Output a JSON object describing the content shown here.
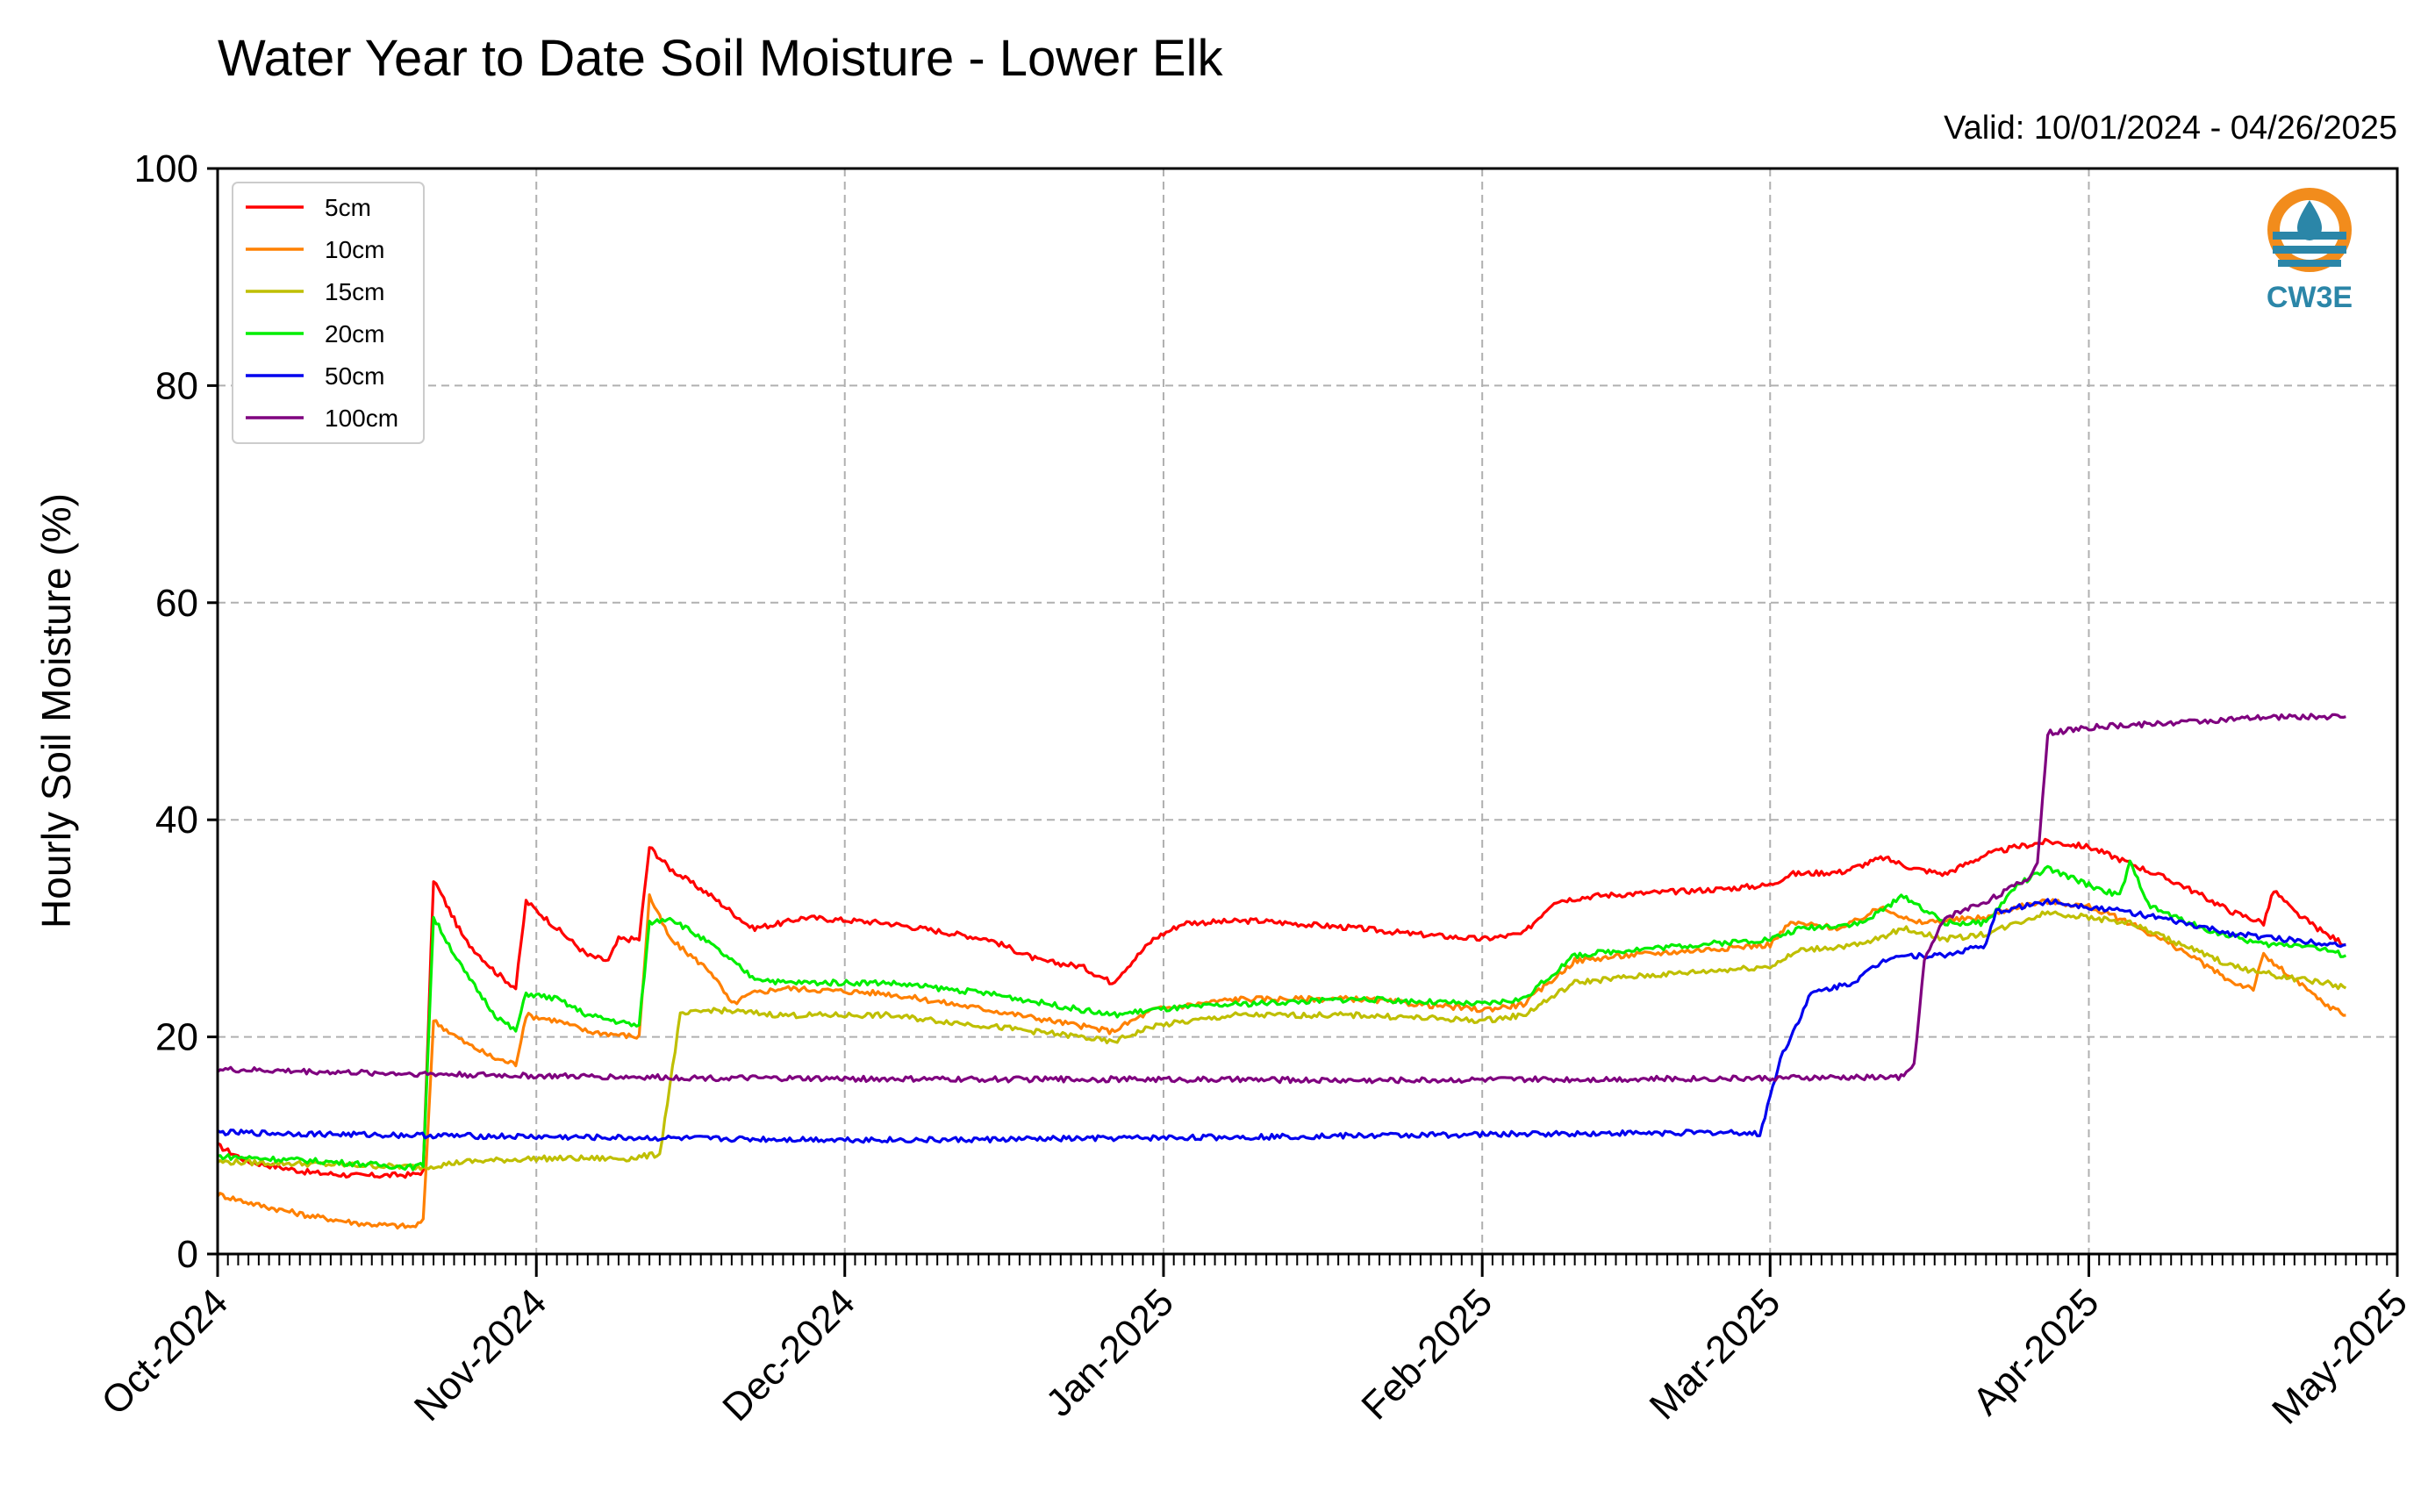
{
  "chart_data": {
    "type": "line",
    "title": "Water Year to Date Soil Moisture - Lower Elk",
    "valid": "Valid: 10/01/2024 - 04/26/2025",
    "ylabel": "Hourly Soil Moisture (%)",
    "xlabel": "",
    "ylim": [
      0,
      100
    ],
    "xlim": [
      "2024-10-01",
      "2025-05-01"
    ],
    "yticks": [
      "0",
      "20",
      "40",
      "60",
      "80",
      "100"
    ],
    "xticks": [
      {
        "date": "2024-10-01",
        "label": "Oct-2024"
      },
      {
        "date": "2024-11-01",
        "label": "Nov-2024"
      },
      {
        "date": "2024-12-01",
        "label": "Dec-2024"
      },
      {
        "date": "2025-01-01",
        "label": "Jan-2025"
      },
      {
        "date": "2025-02-01",
        "label": "Feb-2025"
      },
      {
        "date": "2025-03-01",
        "label": "Mar-2025"
      },
      {
        "date": "2025-04-01",
        "label": "Apr-2025"
      },
      {
        "date": "2025-05-01",
        "label": "May-2025"
      }
    ],
    "grid": true,
    "legend_position": "top-left",
    "series": [
      {
        "name": "5cm",
        "color": "#ff0000",
        "points": [
          [
            "2024-10-01",
            10.0
          ],
          [
            "2024-10-04",
            8.5
          ],
          [
            "2024-10-10",
            7.5
          ],
          [
            "2024-10-15",
            7.2
          ],
          [
            "2024-10-20",
            7.3
          ],
          [
            "2024-10-21",
            7.6
          ],
          [
            "2024-10-22",
            34.5
          ],
          [
            "2024-10-25",
            29.0
          ],
          [
            "2024-10-28",
            26.0
          ],
          [
            "2024-10-30",
            24.5
          ],
          [
            "2024-10-31",
            32.5
          ],
          [
            "2024-11-03",
            30.0
          ],
          [
            "2024-11-06",
            27.5
          ],
          [
            "2024-11-08",
            27.0
          ],
          [
            "2024-11-09",
            29.0
          ],
          [
            "2024-11-11",
            29.0
          ],
          [
            "2024-11-12",
            37.5
          ],
          [
            "2024-11-14",
            35.5
          ],
          [
            "2024-11-18",
            33.0
          ],
          [
            "2024-11-22",
            30.0
          ],
          [
            "2024-11-25",
            30.5
          ],
          [
            "2024-11-27",
            31.0
          ],
          [
            "2024-12-05",
            30.5
          ],
          [
            "2024-12-15",
            29.0
          ],
          [
            "2024-12-20",
            27.0
          ],
          [
            "2024-12-24",
            26.5
          ],
          [
            "2024-12-27",
            25.0
          ],
          [
            "2024-12-31",
            29.0
          ],
          [
            "2025-01-03",
            30.5
          ],
          [
            "2025-01-10",
            30.7
          ],
          [
            "2025-01-20",
            30.0
          ],
          [
            "2025-01-25",
            29.5
          ],
          [
            "2025-02-01",
            29.0
          ],
          [
            "2025-02-05",
            29.5
          ],
          [
            "2025-02-08",
            32.5
          ],
          [
            "2025-02-12",
            33.0
          ],
          [
            "2025-02-18",
            33.3
          ],
          [
            "2025-02-24",
            33.6
          ],
          [
            "2025-03-01",
            34.0
          ],
          [
            "2025-03-03",
            35.0
          ],
          [
            "2025-03-08",
            35.2
          ],
          [
            "2025-03-12",
            36.5
          ],
          [
            "2025-03-15",
            35.5
          ],
          [
            "2025-03-18",
            35.0
          ],
          [
            "2025-03-22",
            36.8
          ],
          [
            "2025-03-25",
            37.5
          ],
          [
            "2025-03-28",
            38.0
          ],
          [
            "2025-04-01",
            37.5
          ],
          [
            "2025-04-05",
            36.0
          ],
          [
            "2025-04-10",
            34.0
          ],
          [
            "2025-04-15",
            31.5
          ],
          [
            "2025-04-18",
            30.5
          ],
          [
            "2025-04-19",
            33.5
          ],
          [
            "2025-04-21",
            31.5
          ],
          [
            "2025-04-24",
            29.5
          ],
          [
            "2025-04-26",
            28.5
          ]
        ]
      },
      {
        "name": "10cm",
        "color": "#ff8000",
        "points": [
          [
            "2024-10-01",
            5.5
          ],
          [
            "2024-10-05",
            4.5
          ],
          [
            "2024-10-10",
            3.5
          ],
          [
            "2024-10-15",
            2.8
          ],
          [
            "2024-10-20",
            2.5
          ],
          [
            "2024-10-21",
            3.0
          ],
          [
            "2024-10-22",
            21.5
          ],
          [
            "2024-10-25",
            19.5
          ],
          [
            "2024-10-28",
            18.0
          ],
          [
            "2024-10-30",
            17.5
          ],
          [
            "2024-10-31",
            22.0
          ],
          [
            "2024-11-03",
            21.5
          ],
          [
            "2024-11-06",
            20.5
          ],
          [
            "2024-11-11",
            20.0
          ],
          [
            "2024-11-12",
            33.0
          ],
          [
            "2024-11-14",
            29.0
          ],
          [
            "2024-11-18",
            26.0
          ],
          [
            "2024-11-20",
            23.0
          ],
          [
            "2024-11-22",
            24.0
          ],
          [
            "2024-11-25",
            24.5
          ],
          [
            "2024-12-05",
            24.0
          ],
          [
            "2024-12-15",
            22.5
          ],
          [
            "2024-12-24",
            21.0
          ],
          [
            "2024-12-27",
            20.5
          ],
          [
            "2024-12-31",
            22.5
          ],
          [
            "2025-01-08",
            23.5
          ],
          [
            "2025-01-20",
            23.5
          ],
          [
            "2025-02-01",
            22.5
          ],
          [
            "2025-02-05",
            23.0
          ],
          [
            "2025-02-10",
            27.0
          ],
          [
            "2025-02-15",
            27.5
          ],
          [
            "2025-02-22",
            28.0
          ],
          [
            "2025-03-01",
            28.5
          ],
          [
            "2025-03-03",
            30.5
          ],
          [
            "2025-03-08",
            30.0
          ],
          [
            "2025-03-12",
            32.0
          ],
          [
            "2025-03-15",
            30.5
          ],
          [
            "2025-03-22",
            31.0
          ],
          [
            "2025-03-25",
            32.0
          ],
          [
            "2025-03-28",
            32.5
          ],
          [
            "2025-04-01",
            32.0
          ],
          [
            "2025-04-05",
            30.5
          ],
          [
            "2025-04-10",
            28.0
          ],
          [
            "2025-04-15",
            25.0
          ],
          [
            "2025-04-17",
            24.5
          ],
          [
            "2025-04-18",
            27.5
          ],
          [
            "2025-04-20",
            26.0
          ],
          [
            "2025-04-24",
            23.0
          ],
          [
            "2025-04-26",
            22.0
          ]
        ]
      },
      {
        "name": "15cm",
        "color": "#bfbf00",
        "points": [
          [
            "2024-10-01",
            8.5
          ],
          [
            "2024-10-10",
            8.3
          ],
          [
            "2024-10-21",
            8.0
          ],
          [
            "2024-10-25",
            8.5
          ],
          [
            "2024-11-01",
            8.8
          ],
          [
            "2024-11-10",
            8.8
          ],
          [
            "2024-11-13",
            9.2
          ],
          [
            "2024-11-15",
            22.0
          ],
          [
            "2024-11-18",
            22.5
          ],
          [
            "2024-11-25",
            22.0
          ],
          [
            "2024-12-05",
            22.0
          ],
          [
            "2024-12-15",
            21.0
          ],
          [
            "2024-12-24",
            20.0
          ],
          [
            "2024-12-27",
            19.5
          ],
          [
            "2024-12-31",
            21.0
          ],
          [
            "2025-01-08",
            22.0
          ],
          [
            "2025-01-20",
            22.0
          ],
          [
            "2025-02-01",
            21.5
          ],
          [
            "2025-02-05",
            22.0
          ],
          [
            "2025-02-10",
            25.0
          ],
          [
            "2025-02-15",
            25.5
          ],
          [
            "2025-02-22",
            26.0
          ],
          [
            "2025-03-01",
            26.5
          ],
          [
            "2025-03-04",
            28.0
          ],
          [
            "2025-03-10",
            28.5
          ],
          [
            "2025-03-14",
            30.0
          ],
          [
            "2025-03-18",
            29.0
          ],
          [
            "2025-03-22",
            29.5
          ],
          [
            "2025-03-28",
            31.5
          ],
          [
            "2025-04-01",
            31.0
          ],
          [
            "2025-04-05",
            30.5
          ],
          [
            "2025-04-10",
            28.5
          ],
          [
            "2025-04-15",
            26.5
          ],
          [
            "2025-04-20",
            25.5
          ],
          [
            "2025-04-24",
            25.0
          ],
          [
            "2025-04-26",
            24.5
          ]
        ]
      },
      {
        "name": "20cm",
        "color": "#00ee00",
        "points": [
          [
            "2024-10-01",
            9.0
          ],
          [
            "2024-10-10",
            8.6
          ],
          [
            "2024-10-20",
            8.0
          ],
          [
            "2024-10-21",
            8.2
          ],
          [
            "2024-10-22",
            31.0
          ],
          [
            "2024-10-25",
            26.0
          ],
          [
            "2024-10-28",
            22.0
          ],
          [
            "2024-10-30",
            20.5
          ],
          [
            "2024-10-31",
            24.0
          ],
          [
            "2024-11-03",
            23.5
          ],
          [
            "2024-11-06",
            22.0
          ],
          [
            "2024-11-11",
            21.0
          ],
          [
            "2024-11-12",
            30.5
          ],
          [
            "2024-11-14",
            31.0
          ],
          [
            "2024-11-18",
            28.5
          ],
          [
            "2024-11-22",
            25.5
          ],
          [
            "2024-11-25",
            25.0
          ],
          [
            "2024-12-05",
            25.0
          ],
          [
            "2024-12-15",
            24.0
          ],
          [
            "2024-12-24",
            22.5
          ],
          [
            "2024-12-27",
            22.0
          ],
          [
            "2024-12-31",
            22.5
          ],
          [
            "2025-01-08",
            23.0
          ],
          [
            "2025-01-20",
            23.5
          ],
          [
            "2025-02-01",
            23.0
          ],
          [
            "2025-02-05",
            23.5
          ],
          [
            "2025-02-10",
            27.5
          ],
          [
            "2025-02-15",
            28.0
          ],
          [
            "2025-02-22",
            28.5
          ],
          [
            "2025-03-01",
            29.0
          ],
          [
            "2025-03-04",
            30.0
          ],
          [
            "2025-03-10",
            30.5
          ],
          [
            "2025-03-14",
            33.0
          ],
          [
            "2025-03-18",
            30.5
          ],
          [
            "2025-03-22",
            30.5
          ],
          [
            "2025-03-25",
            34.0
          ],
          [
            "2025-03-28",
            35.5
          ],
          [
            "2025-04-01",
            34.0
          ],
          [
            "2025-04-04",
            33.0
          ],
          [
            "2025-04-05",
            36.0
          ],
          [
            "2025-04-07",
            32.0
          ],
          [
            "2025-04-12",
            30.0
          ],
          [
            "2025-04-18",
            28.5
          ],
          [
            "2025-04-22",
            28.5
          ],
          [
            "2025-04-26",
            27.5
          ]
        ]
      },
      {
        "name": "50cm",
        "color": "#0000ee",
        "points": [
          [
            "2024-10-01",
            11.2
          ],
          [
            "2024-10-15",
            11.0
          ],
          [
            "2024-11-01",
            10.8
          ],
          [
            "2024-11-20",
            10.6
          ],
          [
            "2024-12-10",
            10.5
          ],
          [
            "2024-12-31",
            10.7
          ],
          [
            "2025-01-20",
            10.9
          ],
          [
            "2025-02-10",
            11.1
          ],
          [
            "2025-02-26",
            11.2
          ],
          [
            "2025-02-28",
            11.0
          ],
          [
            "2025-03-02",
            18.0
          ],
          [
            "2025-03-05",
            24.0
          ],
          [
            "2025-03-09",
            25.0
          ],
          [
            "2025-03-12",
            27.0
          ],
          [
            "2025-03-13",
            27.5
          ],
          [
            "2025-03-18",
            27.5
          ],
          [
            "2025-03-22",
            28.5
          ],
          [
            "2025-03-23",
            31.5
          ],
          [
            "2025-03-28",
            32.5
          ],
          [
            "2025-04-01",
            32.0
          ],
          [
            "2025-04-05",
            31.5
          ],
          [
            "2025-04-10",
            30.5
          ],
          [
            "2025-04-15",
            29.5
          ],
          [
            "2025-04-20",
            29.0
          ],
          [
            "2025-04-26",
            28.5
          ]
        ]
      },
      {
        "name": "100cm",
        "color": "#7f007f",
        "points": [
          [
            "2024-10-01",
            17.0
          ],
          [
            "2024-10-15",
            16.7
          ],
          [
            "2024-11-01",
            16.4
          ],
          [
            "2024-11-20",
            16.2
          ],
          [
            "2024-12-10",
            16.1
          ],
          [
            "2024-12-31",
            16.1
          ],
          [
            "2025-01-20",
            16.0
          ],
          [
            "2025-02-10",
            16.1
          ],
          [
            "2025-03-01",
            16.2
          ],
          [
            "2025-03-14",
            16.3
          ],
          [
            "2025-03-15",
            17.5
          ],
          [
            "2025-03-16",
            27.0
          ],
          [
            "2025-03-18",
            31.0
          ],
          [
            "2025-03-22",
            32.5
          ],
          [
            "2025-03-26",
            34.5
          ],
          [
            "2025-03-27",
            36.0
          ],
          [
            "2025-03-28",
            48.0
          ],
          [
            "2025-04-01",
            48.5
          ],
          [
            "2025-04-10",
            49.0
          ],
          [
            "2025-04-20",
            49.5
          ],
          [
            "2025-04-26",
            49.5
          ]
        ]
      }
    ]
  }
}
